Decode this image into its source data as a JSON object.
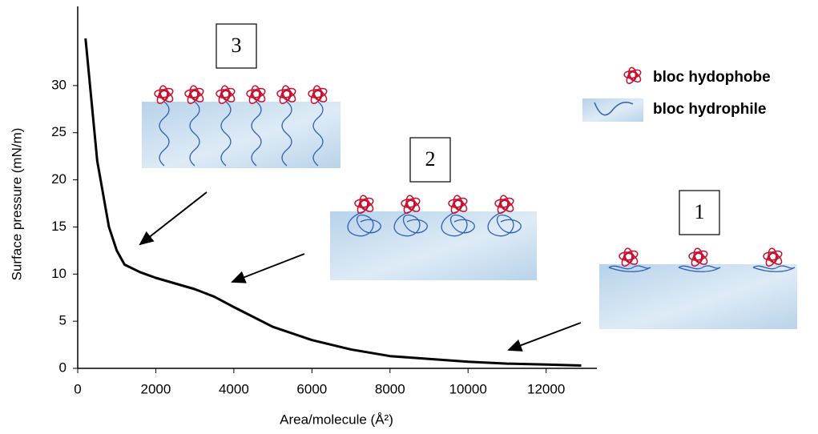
{
  "chart_data": {
    "type": "line",
    "x_label": "Area/molecule (Å²)",
    "y_label": "Surface pressure (mN/m)",
    "x": [
      200,
      500,
      800,
      1000,
      1200,
      1600,
      2000,
      3000,
      3500,
      4000,
      5000,
      6000,
      7000,
      8000,
      9000,
      10000,
      11000,
      12000,
      12900
    ],
    "series": [
      {
        "color": "#000000",
        "values": [
          35,
          22,
          15,
          12.5,
          11,
          10.2,
          9.6,
          8.4,
          7.6,
          6.5,
          4.4,
          3,
          2,
          1.3,
          1,
          0.7,
          0.5,
          0.4,
          0.3
        ]
      }
    ],
    "xlim": [
      0,
      13300
    ],
    "ylim": [
      0,
      38.4
    ],
    "xticks": [
      0,
      2000,
      4000,
      6000,
      8000,
      10000,
      12000
    ],
    "yticks": [
      0,
      5,
      10,
      15,
      20,
      25,
      30
    ],
    "annotations": [
      "3",
      "2",
      "1"
    ],
    "legend_items": [
      "bloc hydophobe",
      "bloc hydrophile"
    ]
  }
}
